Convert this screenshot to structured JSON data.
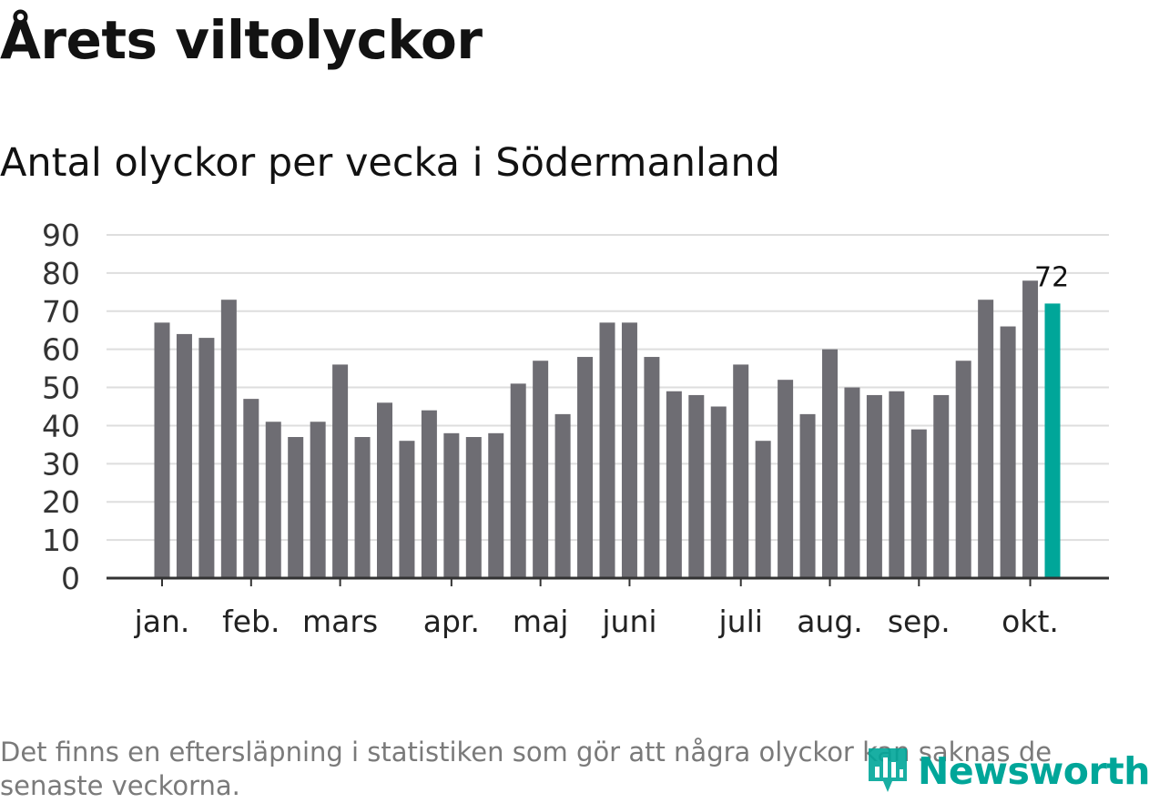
{
  "header": {
    "title": "Årets viltolyckor",
    "subtitle": "Antal olyckor per vecka i Södermanland"
  },
  "footer": {
    "note": "Det finns en eftersläpning i statistiken som gör att några olyckor kan saknas de senaste veckorna."
  },
  "logo": {
    "text": "Newsworthy",
    "color": "#00a699"
  },
  "colors": {
    "bar": "#6e6d73",
    "highlight": "#00a699",
    "grid": "#dedede",
    "axis": "#333333",
    "text": "#121212"
  },
  "chart_data": {
    "type": "bar",
    "title": "Antal olyckor per vecka i Södermanland",
    "xlabel": "",
    "ylabel": "",
    "ylim": [
      0,
      90
    ],
    "yticks": [
      0,
      10,
      20,
      30,
      40,
      50,
      60,
      70,
      80,
      90
    ],
    "grid": true,
    "values": [
      67,
      64,
      63,
      73,
      47,
      41,
      37,
      41,
      56,
      37,
      46,
      36,
      44,
      38,
      37,
      38,
      51,
      57,
      43,
      58,
      67,
      67,
      58,
      49,
      48,
      45,
      56,
      36,
      52,
      43,
      60,
      50,
      48,
      49,
      39,
      48,
      57,
      73,
      66,
      78,
      72
    ],
    "highlight_index": 40,
    "highlight_label": "72",
    "month_labels": [
      {
        "label": "jan.",
        "bar_index": 0
      },
      {
        "label": "feb.",
        "bar_index": 4
      },
      {
        "label": "mars",
        "bar_index": 8
      },
      {
        "label": "apr.",
        "bar_index": 13
      },
      {
        "label": "maj",
        "bar_index": 17
      },
      {
        "label": "juni",
        "bar_index": 21
      },
      {
        "label": "juli",
        "bar_index": 26
      },
      {
        "label": "aug.",
        "bar_index": 30
      },
      {
        "label": "sep.",
        "bar_index": 34
      },
      {
        "label": "okt.",
        "bar_index": 39
      }
    ]
  }
}
